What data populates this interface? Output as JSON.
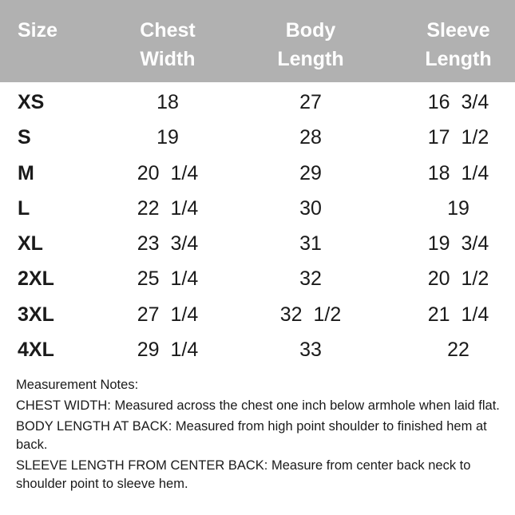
{
  "header": {
    "size": "Size",
    "chest": "Chest\nWidth",
    "body": "Body\nLength",
    "sleeve": "Sleeve\nLength"
  },
  "rows": [
    {
      "size": "XS",
      "chest": "18",
      "body": "27",
      "sleeve": "16  3/4"
    },
    {
      "size": "S",
      "chest": "19",
      "body": "28",
      "sleeve": "17  1/2"
    },
    {
      "size": "M",
      "chest": "20  1/4",
      "body": "29",
      "sleeve": "18  1/4"
    },
    {
      "size": "L",
      "chest": "22  1/4",
      "body": "30",
      "sleeve": "19"
    },
    {
      "size": "XL",
      "chest": "23  3/4",
      "body": "31",
      "sleeve": "19  3/4"
    },
    {
      "size": "2XL",
      "chest": "25  1/4",
      "body": "32",
      "sleeve": "20  1/2"
    },
    {
      "size": "3XL",
      "chest": "27  1/4",
      "body": "32  1/2",
      "sleeve": "21  1/4"
    },
    {
      "size": "4XL",
      "chest": "29  1/4",
      "body": "33",
      "sleeve": "22"
    }
  ],
  "notes": {
    "title": "Measurement Notes:",
    "items": [
      {
        "label": "CHEST WIDTH:",
        "text": " Measured across the chest one inch below armhole when laid flat."
      },
      {
        "label": "BODY LENGTH AT BACK:",
        "text": " Measured from high point shoulder to finished hem at back."
      },
      {
        "label": "SLEEVE LENGTH FROM CENTER BACK:",
        "text": " Measure from center back neck to shoulder point to sleeve hem."
      }
    ]
  },
  "colors": {
    "header_bg": "#b1b1b1",
    "header_text": "#ffffff"
  }
}
